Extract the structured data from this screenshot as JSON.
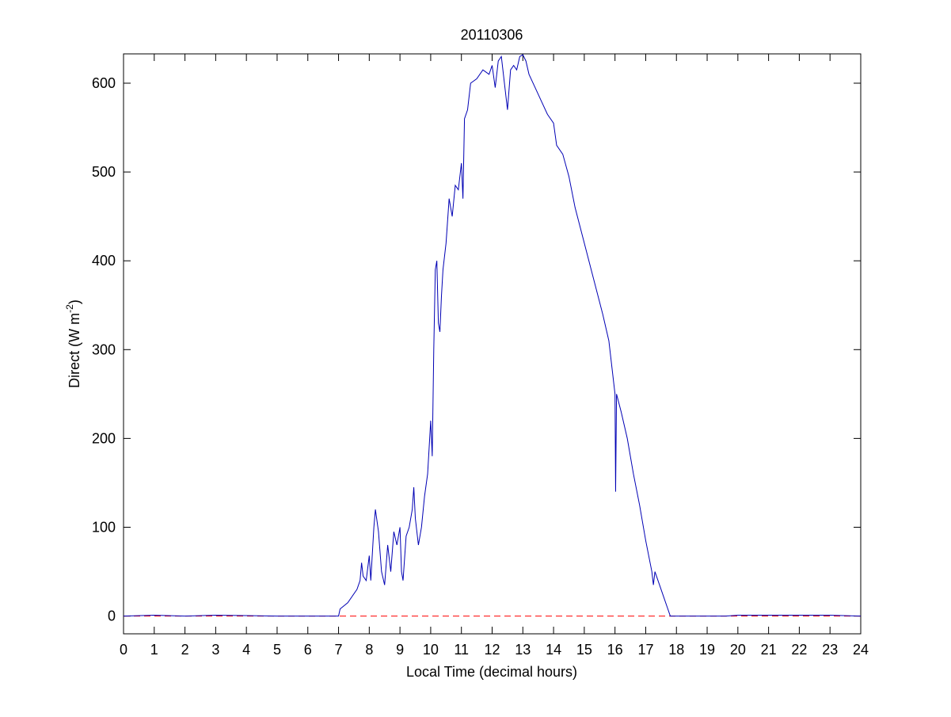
{
  "chart_data": {
    "type": "line",
    "title": "20110306",
    "xlabel": "Local Time (decimal hours)",
    "ylabel": [
      "Direct (W m",
      "-2",
      ")"
    ],
    "xlim": [
      0,
      24
    ],
    "xticks": [
      0,
      1,
      2,
      3,
      4,
      5,
      6,
      7,
      8,
      9,
      10,
      11,
      12,
      13,
      14,
      15,
      16,
      17,
      18,
      19,
      20,
      21,
      22,
      23,
      24
    ],
    "ylim": [
      -20,
      633
    ],
    "yticks": [
      0,
      100,
      200,
      300,
      400,
      500,
      600
    ],
    "reference_line": {
      "value": 0,
      "color": "#ff0000",
      "dashed": true
    },
    "series": [
      {
        "color": "#0000b4",
        "x": [
          0,
          1,
          2,
          3,
          4,
          5,
          6,
          7,
          7.05,
          7.3,
          7.6,
          7.7,
          7.75,
          7.8,
          7.9,
          8.0,
          8.05,
          8.15,
          8.2,
          8.3,
          8.4,
          8.5,
          8.6,
          8.7,
          8.8,
          8.9,
          9.0,
          9.05,
          9.1,
          9.2,
          9.3,
          9.4,
          9.45,
          9.5,
          9.6,
          9.7,
          9.8,
          9.9,
          10.0,
          10.05,
          10.1,
          10.15,
          10.2,
          10.25,
          10.3,
          10.35,
          10.4,
          10.5,
          10.6,
          10.7,
          10.8,
          10.9,
          11.0,
          11.05,
          11.1,
          11.2,
          11.3,
          11.5,
          11.7,
          11.9,
          12.0,
          12.1,
          12.2,
          12.3,
          12.4,
          12.5,
          12.6,
          12.7,
          12.8,
          12.9,
          13.0,
          13.1,
          13.2,
          13.4,
          13.6,
          13.8,
          14.0,
          14.1,
          14.3,
          14.5,
          14.7,
          15.0,
          15.3,
          15.6,
          15.8,
          15.9,
          16.0,
          16.02,
          16.05,
          16.2,
          16.4,
          16.6,
          16.8,
          17.0,
          17.2,
          17.25,
          17.3,
          17.5,
          17.7,
          17.8,
          18,
          19,
          19.6,
          20,
          21,
          22,
          23,
          24
        ],
        "values": [
          0,
          1,
          0,
          1,
          0.5,
          0,
          0,
          0,
          8,
          15,
          30,
          40,
          60,
          45,
          40,
          68,
          40,
          100,
          120,
          95,
          50,
          35,
          80,
          50,
          95,
          80,
          100,
          50,
          40,
          90,
          100,
          120,
          145,
          110,
          80,
          100,
          135,
          160,
          220,
          180,
          300,
          390,
          400,
          330,
          320,
          360,
          390,
          420,
          470,
          450,
          485,
          480,
          510,
          470,
          560,
          570,
          600,
          605,
          615,
          610,
          620,
          595,
          625,
          630,
          600,
          570,
          615,
          620,
          615,
          630,
          632,
          625,
          610,
          595,
          580,
          565,
          555,
          530,
          520,
          495,
          460,
          420,
          380,
          340,
          310,
          280,
          250,
          140,
          250,
          230,
          200,
          160,
          125,
          85,
          50,
          35,
          50,
          30,
          10,
          0,
          0,
          0,
          0,
          1,
          1,
          1,
          1,
          0
        ]
      }
    ]
  }
}
